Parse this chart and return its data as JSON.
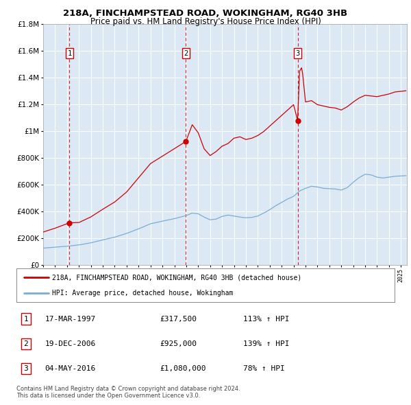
{
  "title1": "218A, FINCHAMPSTEAD ROAD, WOKINGHAM, RG40 3HB",
  "title2": "Price paid vs. HM Land Registry's House Price Index (HPI)",
  "fig_bg_color": "#ffffff",
  "plot_bg_color": "#dce9f5",
  "red_line_color": "#cc0000",
  "blue_line_color": "#7aadd4",
  "sale_prices": [
    317500,
    925000,
    1080000
  ],
  "sale_labels": [
    "1",
    "2",
    "3"
  ],
  "sale_pct": [
    "113% ↑ HPI",
    "139% ↑ HPI",
    "78% ↑ HPI"
  ],
  "sale_date_strs": [
    "17-MAR-1997",
    "19-DEC-2006",
    "04-MAY-2016"
  ],
  "sale_price_strs": [
    "£317,500",
    "£925,000",
    "£1,080,000"
  ],
  "legend_line1": "218A, FINCHAMPSTEAD ROAD, WOKINGHAM, RG40 3HB (detached house)",
  "legend_line2": "HPI: Average price, detached house, Wokingham",
  "footer1": "Contains HM Land Registry data © Crown copyright and database right 2024.",
  "footer2": "This data is licensed under the Open Government Licence v3.0.",
  "ylim": [
    0,
    1800000
  ],
  "xlim_start": 1995.0,
  "xlim_end": 2025.5,
  "sale_year_floats": [
    1997.21,
    2006.97,
    2016.34
  ]
}
